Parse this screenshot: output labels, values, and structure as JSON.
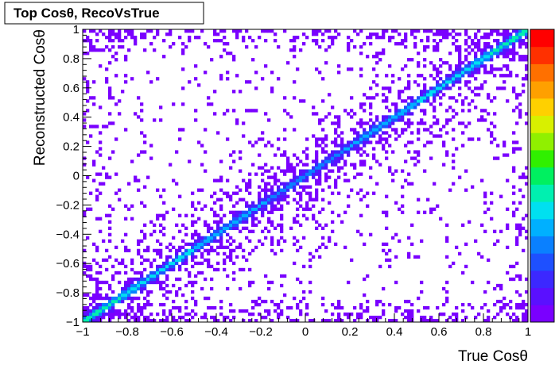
{
  "chart_data": {
    "type": "heatmap",
    "title": "Top Cosθ, RecoVsTrue",
    "xlabel": "True Cosθ",
    "ylabel": "Reconstructed Cosθ",
    "xlim": [
      -1,
      1
    ],
    "ylim": [
      -1,
      1
    ],
    "x_ticks": [
      {
        "value": -1,
        "label": "−1"
      },
      {
        "value": -0.8,
        "label": "−0.8"
      },
      {
        "value": -0.6,
        "label": "−0.6"
      },
      {
        "value": -0.4,
        "label": "−0.4"
      },
      {
        "value": -0.2,
        "label": "−0.2"
      },
      {
        "value": 0,
        "label": "0"
      },
      {
        "value": 0.2,
        "label": "0.2"
      },
      {
        "value": 0.4,
        "label": "0.4"
      },
      {
        "value": 0.6,
        "label": "0.6"
      },
      {
        "value": 0.8,
        "label": "0.8"
      },
      {
        "value": 1,
        "label": "1"
      }
    ],
    "y_ticks": [
      {
        "value": -1,
        "label": "−1"
      },
      {
        "value": -0.8,
        "label": "−0.8"
      },
      {
        "value": -0.6,
        "label": "−0.6"
      },
      {
        "value": -0.4,
        "label": "−0.4"
      },
      {
        "value": -0.2,
        "label": "−0.2"
      },
      {
        "value": 0,
        "label": "0"
      },
      {
        "value": 0.2,
        "label": "0.2"
      },
      {
        "value": 0.4,
        "label": "0.4"
      },
      {
        "value": 0.6,
        "label": "0.6"
      },
      {
        "value": 0.8,
        "label": "0.8"
      },
      {
        "value": 1,
        "label": "1"
      }
    ],
    "color_palette": [
      "#7a00ff",
      "#5a10ff",
      "#3c28ff",
      "#1e50ff",
      "#0a80ff",
      "#00b0ff",
      "#00e0f0",
      "#00f0b0",
      "#00f060",
      "#30f000",
      "#90f000",
      "#d8f000",
      "#ffd000",
      "#ffa000",
      "#ff7000",
      "#ff3000",
      "#ff0000"
    ],
    "color_axis": "color scale on the right, no printed tick labels",
    "grid": false,
    "legend": "none"
  }
}
